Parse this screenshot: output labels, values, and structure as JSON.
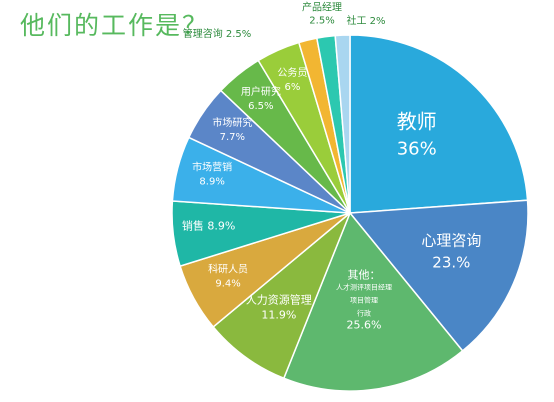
{
  "chart_data": {
    "type": "pie",
    "title": "他们的工作是？",
    "slices": [
      {
        "name": "教师",
        "label": "教师",
        "value_label": "36%",
        "value": 36.0,
        "color": "#29a9dc"
      },
      {
        "name": "心理咨询",
        "label": "心理咨询",
        "value_label": "23.%",
        "value": 23.0,
        "color": "#4a86c6"
      },
      {
        "name": "其他",
        "label": "其他：",
        "detail": [
          "人才测评项目经理",
          "项目管理",
          "行政"
        ],
        "value_label": "25.6%",
        "value": 25.6,
        "color": "#5eb86e"
      },
      {
        "name": "人力资源管理",
        "label": "人力资源管理",
        "value_label": "11.9%",
        "value": 11.9,
        "color": "#8ab93e"
      },
      {
        "name": "科研人员",
        "label": "科研人员",
        "value_label": "9.4%",
        "value": 9.4,
        "color": "#d9a93e"
      },
      {
        "name": "销售",
        "label": "销售",
        "value_label": "8.9%",
        "value": 8.9,
        "color": "#1fb7a6"
      },
      {
        "name": "市场营销",
        "label": "市场营销",
        "value_label": "8.9%",
        "value": 8.9,
        "color": "#3bb0ea"
      },
      {
        "name": "市场研究",
        "label": "市场研究",
        "value_label": "7.7%",
        "value": 7.7,
        "color": "#5b86c8"
      },
      {
        "name": "用户研究",
        "label": "用户研究",
        "value_label": "6.5%",
        "value": 6.5,
        "color": "#67b94a"
      },
      {
        "name": "公务员",
        "label": "公务员",
        "value_label": "6%",
        "value": 6.0,
        "color": "#9acd3a"
      },
      {
        "name": "管理咨询",
        "label": "管理咨询",
        "value_label": "2.5%",
        "value": 2.5,
        "color": "#f2b632"
      },
      {
        "name": "产品经理",
        "label": "产品经理",
        "value_label": "2.5%",
        "value": 2.5,
        "color": "#2cc8b0"
      },
      {
        "name": "社工",
        "label": "社工",
        "value_label": "2%",
        "value": 2.0,
        "color": "#a9d6f0"
      }
    ]
  }
}
